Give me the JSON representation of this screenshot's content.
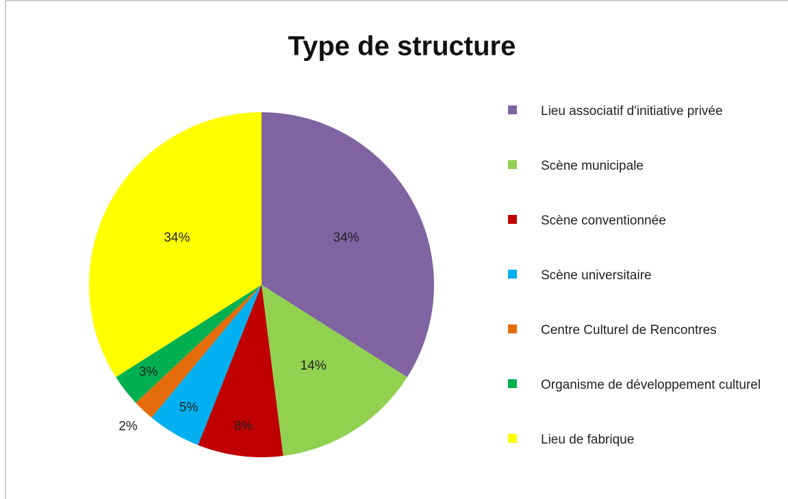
{
  "chart_data": {
    "type": "pie",
    "title": "Type de structure",
    "categories": [
      "Lieu associatif d'initiative privée",
      "Scène municipale",
      "Scène conventionnée",
      "Scène universitaire",
      "Centre Culturel de Rencontres",
      "Organisme de développement culturel",
      "Lieu de fabrique"
    ],
    "values": [
      34,
      14,
      8,
      5,
      2,
      3,
      34
    ],
    "value_labels": [
      "34%",
      "14%",
      "8%",
      "5%",
      "2%",
      "3%",
      "34%"
    ],
    "colors": [
      "#8064a2",
      "#92d050",
      "#c00000",
      "#00b0f0",
      "#e46c0a",
      "#00b050",
      "#ffff00"
    ],
    "legend": "right"
  }
}
